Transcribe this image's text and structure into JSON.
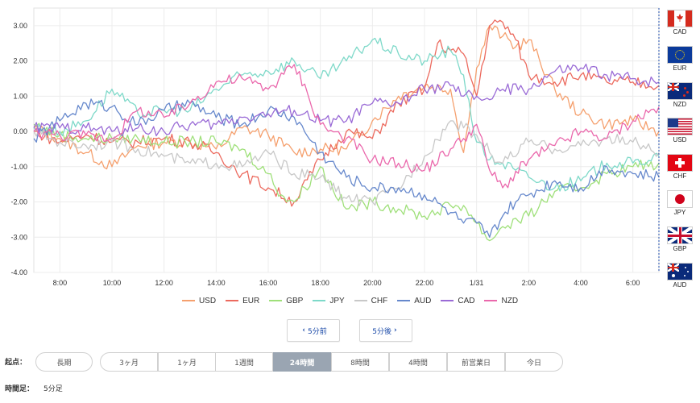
{
  "chart_data": {
    "type": "line",
    "ylim": [
      -4.0,
      3.5
    ],
    "yticks": [
      "3.00",
      "2.00",
      "1.00",
      "0.00",
      "-1.00",
      "-2.00",
      "-3.00",
      "-4.00"
    ],
    "ytick_values": [
      3,
      2,
      1,
      0,
      -1,
      -2,
      -3,
      -4
    ],
    "xlim": [
      7.0,
      31.0
    ],
    "xticks": [
      "8:00",
      "10:00",
      "12:00",
      "14:00",
      "16:00",
      "18:00",
      "20:00",
      "22:00",
      "1/31",
      "2:00",
      "4:00",
      "6:00"
    ],
    "xtick_values": [
      8,
      10,
      12,
      14,
      16,
      18,
      20,
      22,
      24,
      26,
      28,
      30
    ],
    "grid": true,
    "legend_position": "bottom",
    "series": [
      {
        "name": "USD",
        "color": "#f5a06e",
        "x": [
          7,
          8,
          9,
          10,
          11,
          12,
          13,
          14,
          15,
          16,
          17,
          18,
          19,
          20,
          21,
          22,
          23,
          23.5,
          24,
          24.5,
          25,
          25.5,
          26,
          27,
          28,
          29,
          30,
          31
        ],
        "y": [
          0.1,
          -0.2,
          -0.6,
          -1.0,
          -0.4,
          -0.3,
          -0.3,
          -0.5,
          0.1,
          -0.1,
          -0.6,
          -0.5,
          -0.5,
          0.3,
          1.0,
          1.3,
          1.2,
          -0.6,
          1.8,
          3.0,
          2.7,
          2.4,
          2.6,
          1.2,
          0.5,
          0.2,
          0.3,
          0.0
        ]
      },
      {
        "name": "EUR",
        "color": "#ec6a5e",
        "x": [
          7,
          8,
          9,
          10,
          11,
          12,
          13,
          14,
          15,
          16,
          17,
          18,
          19,
          20,
          21,
          22,
          22.5,
          23,
          23.5,
          24,
          24.5,
          25,
          25.5,
          26,
          27,
          28,
          29,
          30,
          31
        ],
        "y": [
          0.0,
          -0.3,
          -0.1,
          -0.3,
          -0.3,
          -0.2,
          -0.3,
          -0.6,
          -1.2,
          -1.6,
          -2.0,
          -0.8,
          0.0,
          -0.2,
          0.8,
          1.2,
          2.5,
          2.3,
          2.2,
          1.0,
          3.0,
          3.1,
          2.6,
          1.6,
          1.4,
          1.6,
          1.4,
          1.4,
          1.3
        ]
      },
      {
        "name": "GBP",
        "color": "#9fe07a",
        "x": [
          7,
          8,
          9,
          10,
          11,
          12,
          13,
          14,
          15,
          16,
          16.5,
          17,
          18,
          19,
          20,
          21,
          22,
          23,
          23.5,
          24,
          24.5,
          25,
          26,
          27,
          28,
          29,
          30,
          31
        ],
        "y": [
          0.2,
          -0.1,
          -0.2,
          -0.2,
          -0.2,
          -0.3,
          -0.3,
          -0.3,
          -0.5,
          -1.2,
          -1.8,
          -2.0,
          -1.0,
          -2.2,
          -2.0,
          -2.2,
          -2.4,
          -2.1,
          -2.1,
          -2.6,
          -3.1,
          -2.7,
          -2.4,
          -1.7,
          -1.6,
          -1.2,
          -1.0,
          -0.9
        ]
      },
      {
        "name": "JPY",
        "color": "#7ed9c9",
        "x": [
          7,
          8,
          9,
          10,
          11,
          12,
          13,
          14,
          15,
          16,
          17,
          18,
          19,
          20,
          21,
          22,
          23,
          23.5,
          24,
          24.5,
          25,
          25.5,
          26,
          27,
          28,
          29,
          30,
          31
        ],
        "y": [
          0.1,
          0.0,
          0.3,
          1.2,
          0.5,
          0.6,
          0.6,
          1.2,
          1.6,
          1.7,
          2.0,
          1.5,
          2.0,
          2.6,
          2.2,
          2.0,
          2.3,
          1.6,
          -0.3,
          -0.8,
          -0.9,
          -1.1,
          -1.3,
          -1.6,
          -1.4,
          -0.9,
          -0.9,
          -0.7
        ]
      },
      {
        "name": "CHF",
        "color": "#c8c8c8",
        "x": [
          7,
          8,
          9,
          10,
          11,
          12,
          13,
          14,
          15,
          16,
          17,
          18,
          19,
          20,
          21,
          22,
          23,
          23.5,
          24,
          24.5,
          25,
          26,
          27,
          28,
          29,
          30,
          31
        ],
        "y": [
          0.0,
          -0.3,
          -0.4,
          -0.3,
          -0.5,
          -0.7,
          -0.9,
          -0.9,
          -1.0,
          -0.6,
          -1.2,
          -1.3,
          -1.9,
          -2.0,
          -1.6,
          -0.7,
          0.3,
          0.1,
          -0.1,
          -0.6,
          -0.9,
          -0.3,
          -0.5,
          -0.4,
          -0.2,
          -0.3,
          -0.6
        ]
      },
      {
        "name": "AUD",
        "color": "#6688cc",
        "x": [
          7,
          8,
          9,
          10,
          11,
          12,
          13,
          14,
          15,
          16,
          17,
          18,
          19,
          20,
          21,
          22,
          23,
          23.5,
          24,
          24.5,
          25,
          25.5,
          26,
          27,
          28,
          29,
          30,
          31
        ],
        "y": [
          -0.2,
          0.3,
          0.8,
          0.7,
          0.2,
          0.6,
          0.8,
          0.4,
          0.2,
          0.6,
          0.4,
          -0.6,
          -1.3,
          -1.6,
          -1.6,
          -1.8,
          -2.3,
          -2.6,
          -2.6,
          -3.0,
          -2.4,
          -2.0,
          -1.8,
          -1.4,
          -1.6,
          -1.0,
          -1.2,
          -1.3
        ]
      },
      {
        "name": "CAD",
        "color": "#9a6bd6",
        "x": [
          7,
          8,
          9,
          10,
          11,
          12,
          13,
          14,
          15,
          16,
          17,
          18,
          19,
          20,
          21,
          22,
          23,
          23.5,
          24,
          24.5,
          25,
          26,
          27,
          28,
          29,
          30,
          31
        ],
        "y": [
          0.1,
          0.1,
          0.1,
          0.0,
          0.1,
          0.0,
          0.2,
          0.2,
          0.4,
          0.5,
          0.6,
          0.3,
          0.3,
          0.8,
          0.8,
          1.2,
          1.3,
          1.0,
          1.0,
          0.9,
          1.2,
          1.2,
          1.7,
          1.8,
          1.6,
          1.5,
          1.4
        ]
      },
      {
        "name": "NZD",
        "color": "#ea68ac",
        "x": [
          7,
          8,
          9,
          10,
          11,
          12,
          13,
          14,
          15,
          16,
          17,
          17.5,
          18,
          19,
          20,
          21,
          22,
          23,
          23.5,
          24,
          24.5,
          25,
          26,
          27,
          28,
          29,
          30,
          31
        ],
        "y": [
          0.0,
          -0.1,
          -0.1,
          -0.2,
          0.6,
          0.4,
          0.8,
          1.4,
          1.5,
          1.2,
          1.9,
          1.1,
          0.2,
          -0.2,
          -0.8,
          -0.9,
          -1.1,
          -0.5,
          -0.2,
          0.2,
          -1.1,
          -1.6,
          -0.8,
          -0.4,
          0.0,
          -0.2,
          0.3,
          0.7
        ]
      }
    ]
  },
  "flags": [
    {
      "code": "CAD"
    },
    {
      "code": "EUR"
    },
    {
      "code": "NZD"
    },
    {
      "code": "USD"
    },
    {
      "code": "CHF"
    },
    {
      "code": "JPY"
    },
    {
      "code": "GBP"
    },
    {
      "code": "AUD"
    }
  ],
  "nav": {
    "prev_label": "5分前",
    "next_label": "5分後"
  },
  "origin": {
    "label": "起点：",
    "long_label": "長期",
    "ranges": [
      "3ヶ月",
      "1ヶ月",
      "1週間",
      "24時間",
      "8時間",
      "4時間",
      "前営業日",
      "今日"
    ],
    "active": "24時間"
  },
  "timeframe": {
    "label": "時間足：",
    "value": "5分足"
  }
}
